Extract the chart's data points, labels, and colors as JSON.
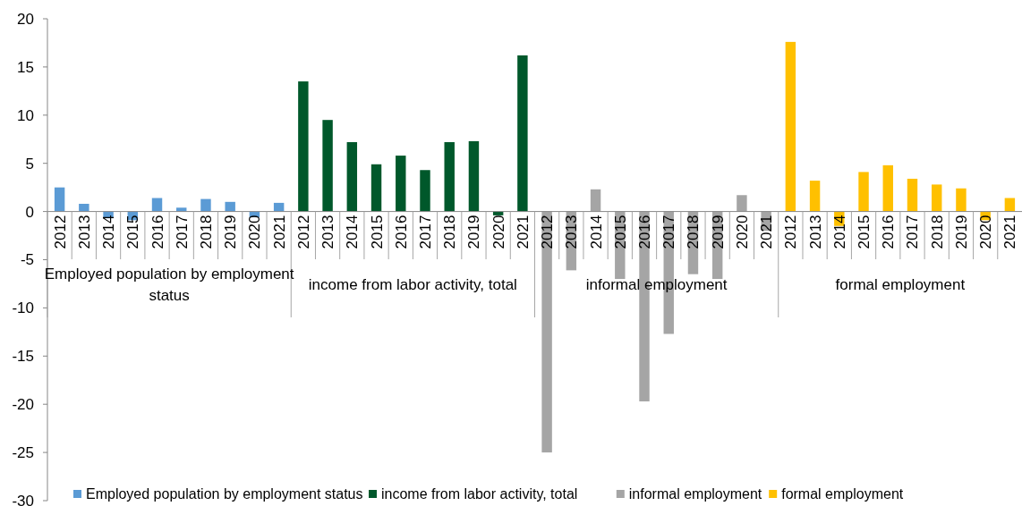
{
  "chart_data": {
    "type": "bar",
    "categories": [
      "2012",
      "2013",
      "2014",
      "2015",
      "2016",
      "2017",
      "2018",
      "2019",
      "2020",
      "2021",
      "2012",
      "2013",
      "2014",
      "2015",
      "2016",
      "2017",
      "2018",
      "2019",
      "2020",
      "2021",
      "2012",
      "2013",
      "2014",
      "2015",
      "2016",
      "2017",
      "2018",
      "2019",
      "2020",
      "2021",
      "2012",
      "2013",
      "2014",
      "2015",
      "2016",
      "2017",
      "2018",
      "2019",
      "2020",
      "2021"
    ],
    "series": [
      {
        "name": "Employed population by employment status",
        "color": "#5b9bd5",
        "values": [
          2.5,
          0.8,
          -0.7,
          -0.9,
          1.4,
          0.4,
          1.3,
          1.0,
          -0.6,
          0.9,
          null,
          null,
          null,
          null,
          null,
          null,
          null,
          null,
          null,
          null,
          null,
          null,
          null,
          null,
          null,
          null,
          null,
          null,
          null,
          null,
          null,
          null,
          null,
          null,
          null,
          null,
          null,
          null,
          null,
          null
        ]
      },
      {
        "name": "income from labor activity, total",
        "color": "#00582b",
        "values": [
          null,
          null,
          null,
          null,
          null,
          null,
          null,
          null,
          null,
          null,
          13.5,
          9.5,
          7.2,
          4.9,
          5.8,
          4.3,
          7.2,
          7.3,
          -0.4,
          16.2,
          null,
          null,
          null,
          null,
          null,
          null,
          null,
          null,
          null,
          null,
          null,
          null,
          null,
          null,
          null,
          null,
          null,
          null,
          null,
          null
        ]
      },
      {
        "name": "informal employment",
        "color": "#a5a5a5",
        "values": [
          null,
          null,
          null,
          null,
          null,
          null,
          null,
          null,
          null,
          null,
          null,
          null,
          null,
          null,
          null,
          null,
          null,
          null,
          null,
          null,
          -25.0,
          -6.1,
          2.3,
          -7.0,
          -19.7,
          -12.7,
          -6.5,
          -7.0,
          1.7,
          -2.0,
          null,
          null,
          null,
          null,
          null,
          null,
          null,
          null,
          null,
          null
        ]
      },
      {
        "name": "formal employment",
        "color": "#ffc000",
        "values": [
          null,
          null,
          null,
          null,
          null,
          null,
          null,
          null,
          null,
          null,
          null,
          null,
          null,
          null,
          null,
          null,
          null,
          null,
          null,
          null,
          null,
          null,
          null,
          null,
          null,
          null,
          null,
          null,
          null,
          null,
          17.6,
          3.2,
          -1.5,
          4.1,
          4.8,
          3.4,
          2.8,
          2.4,
          -0.9,
          1.4
        ]
      }
    ],
    "annotations": [
      "Employed population by employment status",
      "income from labor activity, total",
      "informal employment",
      "formal employment"
    ],
    "ylim": [
      -30,
      20
    ],
    "yticks": [
      -30,
      -25,
      -20,
      -15,
      -10,
      -5,
      0,
      5,
      10,
      15,
      20
    ],
    "legend": "bottom"
  }
}
